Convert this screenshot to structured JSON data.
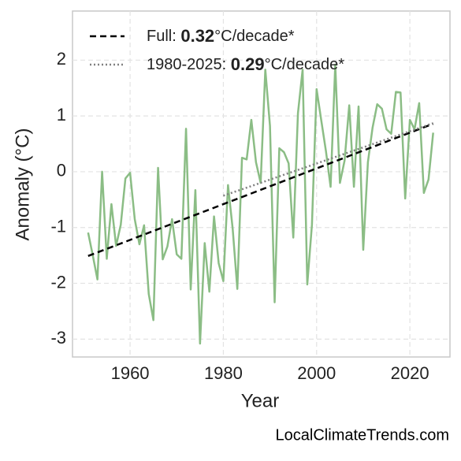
{
  "chart_data": {
    "type": "line",
    "xlabel": "Year",
    "ylabel": "Anomaly (°C)",
    "source": "LocalClimateTrends.com",
    "xlim": [
      1947.65,
      2028.6
    ],
    "ylim": [
      -3.32,
      2.88
    ],
    "xticks": [
      1960,
      1980,
      2000,
      2020
    ],
    "yticks": [
      -3,
      -2,
      -1,
      0,
      1,
      2
    ],
    "grid": true,
    "legend": "upper left",
    "x": [
      1951,
      1952,
      1953,
      1954,
      1955,
      1956,
      1957,
      1958,
      1959,
      1960,
      1961,
      1962,
      1963,
      1964,
      1965,
      1966,
      1967,
      1968,
      1969,
      1970,
      1971,
      1972,
      1973,
      1974,
      1975,
      1976,
      1977,
      1978,
      1979,
      1980,
      1981,
      1982,
      1983,
      1984,
      1985,
      1986,
      1987,
      1988,
      1989,
      1990,
      1991,
      1992,
      1993,
      1994,
      1995,
      1996,
      1997,
      1998,
      1999,
      2000,
      2001,
      2002,
      2003,
      2004,
      2005,
      2006,
      2007,
      2008,
      2009,
      2010,
      2011,
      2012,
      2013,
      2014,
      2015,
      2016,
      2017,
      2018,
      2019,
      2020,
      2021,
      2022,
      2023,
      2024,
      2025
    ],
    "series": [
      {
        "color": "#8bbd85",
        "values": [
          -1.09,
          -1.5,
          -1.93,
          0.0,
          -1.56,
          -0.58,
          -1.33,
          -0.95,
          -0.12,
          -0.02,
          -0.85,
          -1.3,
          -0.96,
          -2.19,
          -2.66,
          0.07,
          -1.57,
          -1.34,
          -0.85,
          -1.48,
          -1.56,
          0.77,
          -2.11,
          -0.33,
          -3.08,
          -1.28,
          -2.15,
          -0.8,
          -1.64,
          -1.96,
          -0.24,
          -1.02,
          -2.1,
          0.25,
          0.22,
          0.93,
          0.17,
          -0.2,
          1.83,
          0.82,
          -2.34,
          0.42,
          0.35,
          0.15,
          -1.18,
          1.05,
          1.83,
          -2.02,
          -0.95,
          1.48,
          0.92,
          0.37,
          -0.27,
          1.92,
          -0.2,
          0.2,
          1.19,
          -0.27,
          1.17,
          -1.4,
          0.17,
          0.79,
          1.21,
          1.13,
          0.76,
          0.68,
          1.43,
          1.42,
          -0.48,
          0.93,
          0.76,
          1.23,
          -0.38,
          -0.14,
          0.7
        ]
      }
    ],
    "trend_lines": [
      {
        "label_parts": [
          "Full: ",
          "0.32",
          "°C/decade*"
        ],
        "color": "#000000",
        "dash": "dashed",
        "x": [
          1951,
          2025
        ],
        "values": [
          -1.51,
          0.86
        ]
      },
      {
        "label_parts": [
          "1980-2025: ",
          "0.29",
          "°C/decade*"
        ],
        "color": "#808080",
        "dash": "dotted",
        "x": [
          1980,
          2025
        ],
        "values": [
          -0.43,
          0.87
        ]
      }
    ]
  }
}
